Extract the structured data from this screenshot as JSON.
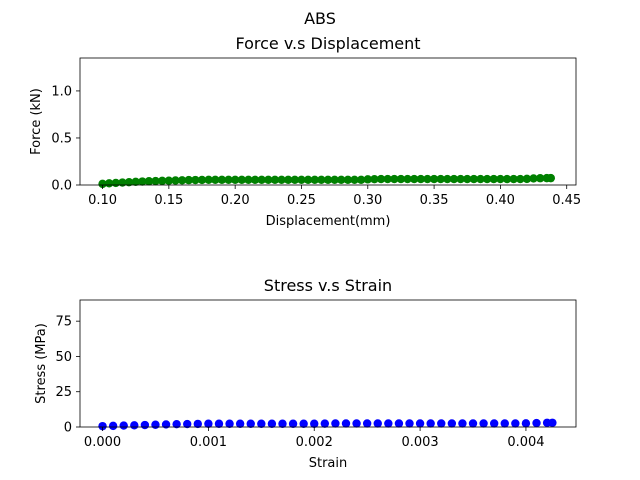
{
  "figure": {
    "suptitle": "ABS"
  },
  "chart_data": [
    {
      "type": "scatter",
      "title": "Force v.s Displacement",
      "xlabel": "Displacement(mm)",
      "ylabel": "Force (kN)",
      "xlim": [
        0.083,
        0.457
      ],
      "ylim": [
        0.0,
        1.35
      ],
      "xticks": [
        0.1,
        0.15,
        0.2,
        0.25,
        0.3,
        0.35,
        0.4,
        0.45
      ],
      "xtick_labels": [
        "0.10",
        "0.15",
        "0.20",
        "0.25",
        "0.30",
        "0.35",
        "0.40",
        "0.45"
      ],
      "yticks": [
        0.0,
        0.5,
        1.0
      ],
      "ytick_labels": [
        "0.0",
        "0.5",
        "1.0"
      ],
      "grid": false,
      "color": "#008000",
      "series": [
        {
          "x": [
            0.1,
            0.105,
            0.11,
            0.115,
            0.12,
            0.125,
            0.13,
            0.135,
            0.14,
            0.145,
            0.15,
            0.155,
            0.16,
            0.165,
            0.17,
            0.175,
            0.18,
            0.185,
            0.19,
            0.195,
            0.2,
            0.205,
            0.21,
            0.215,
            0.22,
            0.225,
            0.23,
            0.235,
            0.24,
            0.245,
            0.25,
            0.255,
            0.26,
            0.265,
            0.27,
            0.275,
            0.28,
            0.285,
            0.29,
            0.295,
            0.3,
            0.305,
            0.31,
            0.315,
            0.32,
            0.325,
            0.33,
            0.335,
            0.34,
            0.345,
            0.35,
            0.355,
            0.36,
            0.365,
            0.37,
            0.375,
            0.38,
            0.385,
            0.39,
            0.395,
            0.4,
            0.405,
            0.41,
            0.415,
            0.42,
            0.425,
            0.43,
            0.435,
            0.438
          ],
          "y": [
            0.012,
            0.018,
            0.022,
            0.026,
            0.03,
            0.034,
            0.037,
            0.04,
            0.042,
            0.044,
            0.046,
            0.048,
            0.05,
            0.052,
            0.053,
            0.054,
            0.055,
            0.055,
            0.055,
            0.055,
            0.055,
            0.055,
            0.055,
            0.055,
            0.055,
            0.055,
            0.055,
            0.055,
            0.055,
            0.055,
            0.055,
            0.055,
            0.055,
            0.055,
            0.055,
            0.055,
            0.055,
            0.055,
            0.055,
            0.055,
            0.06,
            0.062,
            0.063,
            0.063,
            0.063,
            0.063,
            0.063,
            0.063,
            0.063,
            0.063,
            0.063,
            0.063,
            0.063,
            0.063,
            0.063,
            0.063,
            0.063,
            0.063,
            0.063,
            0.063,
            0.063,
            0.063,
            0.063,
            0.063,
            0.065,
            0.07,
            0.072,
            0.073,
            0.073
          ]
        }
      ]
    },
    {
      "type": "scatter",
      "title": "Stress v.s Strain",
      "xlabel": "Strain",
      "ylabel": "Stress (MPa)",
      "xlim": [
        -0.000213,
        0.004473
      ],
      "ylim": [
        0.0,
        90.0
      ],
      "xticks": [
        0.0,
        0.001,
        0.002,
        0.003,
        0.004
      ],
      "xtick_labels": [
        "0.000",
        "0.001",
        "0.002",
        "0.003",
        "0.004"
      ],
      "yticks": [
        0,
        25,
        50,
        75
      ],
      "ytick_labels": [
        "0",
        "25",
        "50",
        "75"
      ],
      "grid": false,
      "color": "#0000ff",
      "series": [
        {
          "x": [
            0.0,
            0.0001,
            0.0002,
            0.0003,
            0.0004,
            0.0005,
            0.0006,
            0.0007,
            0.0008,
            0.0009,
            0.001,
            0.0011,
            0.0012,
            0.0013,
            0.0014,
            0.0015,
            0.0016,
            0.0017,
            0.0018,
            0.0019,
            0.002,
            0.0021,
            0.0022,
            0.0023,
            0.0024,
            0.0025,
            0.0026,
            0.0027,
            0.0028,
            0.0029,
            0.003,
            0.0031,
            0.0032,
            0.0033,
            0.0034,
            0.0035,
            0.0036,
            0.0037,
            0.0038,
            0.0039,
            0.004,
            0.0041,
            0.0042,
            0.00425
          ],
          "y": [
            0.6,
            0.8,
            1.0,
            1.2,
            1.4,
            1.6,
            1.8,
            2.0,
            2.1,
            2.2,
            2.3,
            2.3,
            2.3,
            2.3,
            2.3,
            2.3,
            2.3,
            2.3,
            2.3,
            2.3,
            2.3,
            2.4,
            2.5,
            2.5,
            2.5,
            2.5,
            2.5,
            2.5,
            2.5,
            2.5,
            2.5,
            2.5,
            2.5,
            2.5,
            2.5,
            2.5,
            2.5,
            2.5,
            2.5,
            2.5,
            2.6,
            2.8,
            3.0,
            3.0
          ]
        }
      ]
    }
  ]
}
